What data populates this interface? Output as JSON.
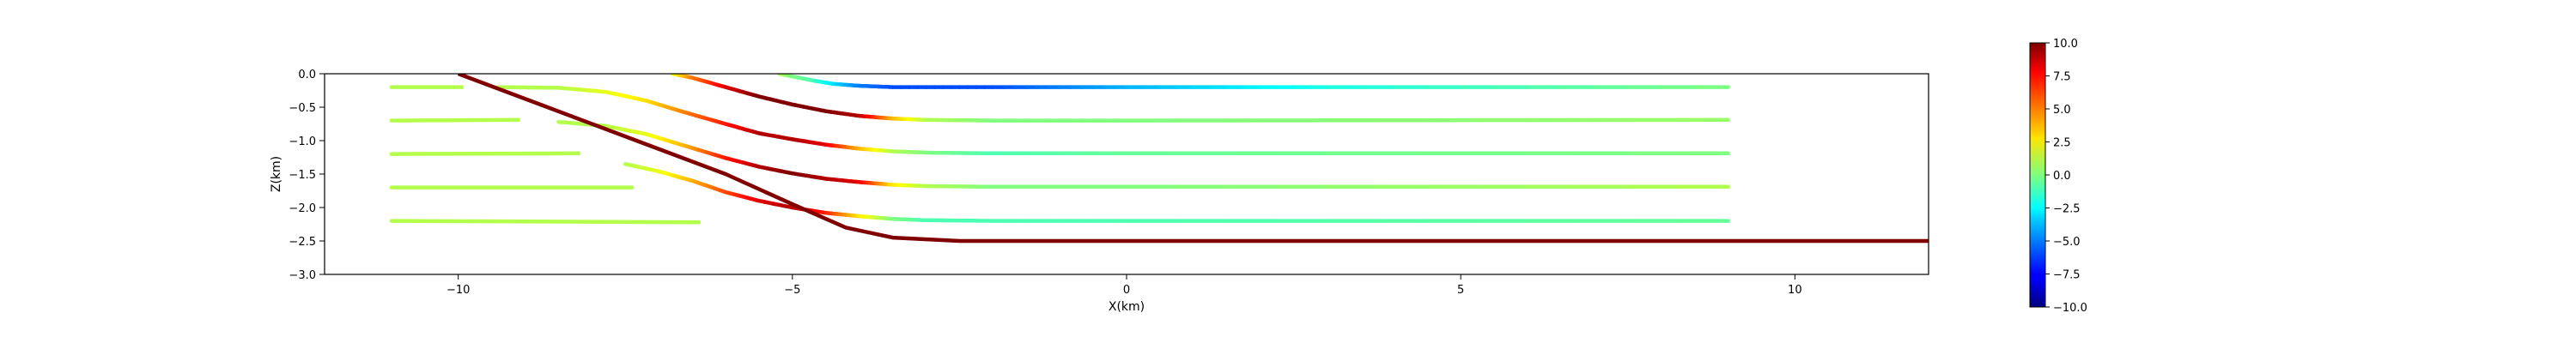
{
  "chart_data": {
    "type": "line",
    "title": "",
    "xlabel": "X(km)",
    "ylabel": "Z(km)",
    "xlim": [
      -12,
      12
    ],
    "ylim": [
      -3.0,
      0.0
    ],
    "x_ticks": [
      -10,
      -5,
      0,
      5,
      10
    ],
    "y_ticks": [
      0.0,
      -0.5,
      -1.0,
      -1.5,
      -2.0,
      -2.5,
      -3.0
    ],
    "x_tick_labels": [
      "−10",
      "−5",
      "0",
      "5",
      "10"
    ],
    "y_tick_labels": [
      "0.0",
      "−0.5",
      "−1.0",
      "−1.5",
      "−2.0",
      "−2.5",
      "−3.0"
    ],
    "grid": false,
    "colormap": "jet",
    "colorbar": {
      "min": -10.0,
      "max": 10.0,
      "ticks": [
        10.0,
        7.5,
        5.0,
        2.5,
        0.0,
        -2.5,
        -5.0,
        -7.5,
        -10.0
      ],
      "tick_labels": [
        "10.0",
        "7.5",
        "5.0",
        "2.5",
        "0.0",
        "−2.5",
        "−5.0",
        "−7.5",
        "−10.0"
      ]
    },
    "fault": {
      "color_value": 10,
      "points": [
        [
          -10.0,
          0.0
        ],
        [
          -6.0,
          -1.5
        ],
        [
          -5.0,
          -1.95
        ],
        [
          -4.2,
          -2.3
        ],
        [
          -3.5,
          -2.45
        ],
        [
          -2.5,
          -2.5
        ],
        [
          12.0,
          -2.5
        ]
      ]
    },
    "footwall_layers": [
      {
        "color_value": 1,
        "points": [
          [
            -11.0,
            -0.2
          ],
          [
            -9.95,
            -0.2
          ]
        ]
      },
      {
        "color_value": 1,
        "points": [
          [
            -11.0,
            -0.7
          ],
          [
            -9.1,
            -0.69
          ]
        ]
      },
      {
        "color_value": 1,
        "points": [
          [
            -11.0,
            -1.2
          ],
          [
            -8.2,
            -1.19
          ]
        ]
      },
      {
        "color_value": 1,
        "points": [
          [
            -11.0,
            -1.7
          ],
          [
            -7.4,
            -1.7
          ]
        ]
      },
      {
        "color_value": 1,
        "points": [
          [
            -11.0,
            -2.2
          ],
          [
            -6.4,
            -2.22
          ]
        ]
      }
    ],
    "hanging_wall_layers": [
      {
        "points": [
          [
            -9.4,
            -0.2
          ],
          [
            -8.5,
            -0.21
          ],
          [
            -7.8,
            -0.27
          ],
          [
            -7.2,
            -0.4
          ],
          [
            -6.6,
            -0.58
          ],
          [
            -6.0,
            -0.75
          ],
          [
            -5.5,
            -0.89
          ],
          [
            -5.0,
            -0.98
          ],
          [
            -4.5,
            -1.06
          ],
          [
            -4.0,
            -1.12
          ],
          [
            -3.5,
            -1.16
          ],
          [
            -3.0,
            -1.18
          ],
          [
            -2.0,
            -1.19
          ],
          [
            0.0,
            -1.19
          ],
          [
            9.0,
            -1.19
          ]
        ],
        "values": [
          1,
          1,
          2,
          3,
          5,
          7,
          9,
          9,
          8,
          4,
          1,
          0,
          -1,
          -0.5,
          0
        ]
      },
      {
        "points": [
          [
            -8.5,
            -0.72
          ],
          [
            -7.8,
            -0.78
          ],
          [
            -7.2,
            -0.9
          ],
          [
            -6.6,
            -1.08
          ],
          [
            -6.0,
            -1.26
          ],
          [
            -5.5,
            -1.39
          ],
          [
            -5.0,
            -1.49
          ],
          [
            -4.5,
            -1.57
          ],
          [
            -4.0,
            -1.62
          ],
          [
            -3.5,
            -1.66
          ],
          [
            -3.0,
            -1.68
          ],
          [
            -2.0,
            -1.69
          ],
          [
            0.0,
            -1.69
          ],
          [
            9.0,
            -1.69
          ]
        ],
        "values": [
          1,
          1,
          2,
          4,
          7,
          9,
          10,
          9,
          8,
          3,
          1,
          0,
          0,
          1
        ]
      },
      {
        "points": [
          [
            -7.5,
            -1.35
          ],
          [
            -7.0,
            -1.46
          ],
          [
            -6.5,
            -1.6
          ],
          [
            -6.0,
            -1.77
          ],
          [
            -5.5,
            -1.9
          ],
          [
            -5.0,
            -2.0
          ],
          [
            -4.5,
            -2.08
          ],
          [
            -4.0,
            -2.13
          ],
          [
            -3.5,
            -2.17
          ],
          [
            -3.0,
            -2.19
          ],
          [
            -2.0,
            -2.2
          ],
          [
            0.0,
            -2.2
          ],
          [
            9.0,
            -2.2
          ]
        ],
        "values": [
          1,
          2,
          4,
          6,
          8,
          9,
          7,
          3,
          0,
          -1,
          -1,
          -1,
          -0.5
        ]
      },
      {
        "points": [
          [
            -6.8,
            0.0
          ],
          [
            -6.5,
            -0.06
          ],
          [
            -6.0,
            -0.2
          ],
          [
            -5.5,
            -0.34
          ],
          [
            -5.0,
            -0.46
          ],
          [
            -4.5,
            -0.56
          ],
          [
            -4.0,
            -0.63
          ],
          [
            -3.5,
            -0.67
          ],
          [
            -3.0,
            -0.69
          ],
          [
            -2.0,
            -0.7
          ],
          [
            0.0,
            -0.7
          ],
          [
            9.0,
            -0.69
          ]
        ],
        "values": [
          2,
          5,
          8,
          10,
          10,
          10,
          9,
          4,
          1,
          0,
          0,
          0.5
        ]
      },
      {
        "points": [
          [
            -5.2,
            0.0
          ],
          [
            -5.0,
            -0.04
          ],
          [
            -4.7,
            -0.1
          ],
          [
            -4.4,
            -0.15
          ],
          [
            -4.0,
            -0.18
          ],
          [
            -3.5,
            -0.2
          ],
          [
            -2.0,
            -0.2
          ],
          [
            0.0,
            -0.2
          ],
          [
            3.0,
            -0.2
          ],
          [
            9.0,
            -0.2
          ]
        ],
        "values": [
          1,
          0,
          -1,
          -3,
          -5,
          -6,
          -6,
          -4,
          -2,
          0
        ]
      }
    ]
  }
}
